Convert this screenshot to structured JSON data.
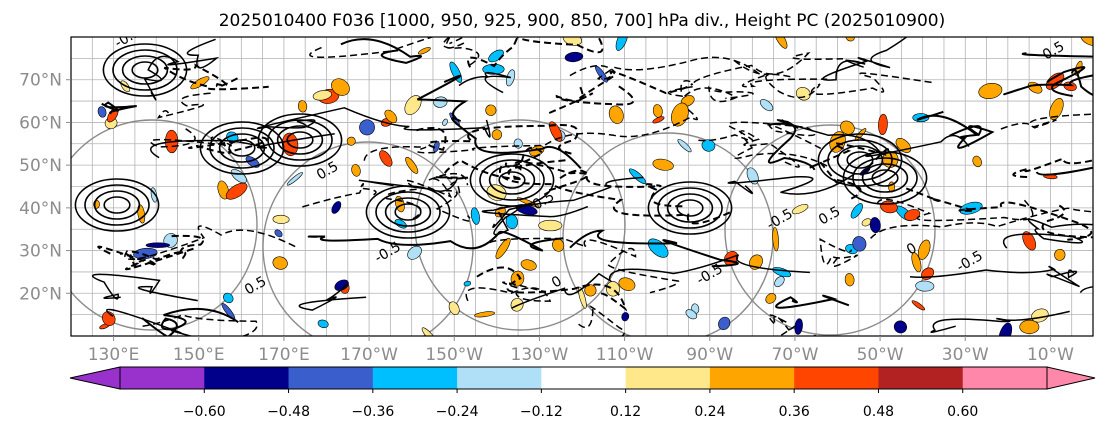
{
  "chart_data": {
    "type": "contour_map",
    "title": "2025010400 F036 [1000, 950, 925, 900, 850, 700] hPa div., Height PC (2025010900)",
    "lon_ticks": [
      "130°E",
      "150°E",
      "170°E",
      "170°W",
      "150°W",
      "130°W",
      "110°W",
      "90°W",
      "70°W",
      "50°W",
      "30°W",
      "10°W"
    ],
    "lat_ticks": [
      "70°N",
      "60°N",
      "50°N",
      "40°N",
      "30°N",
      "20°N"
    ],
    "lon_range_deg_east": [
      120,
      360
    ],
    "lat_range": [
      10,
      80
    ],
    "colorbar": {
      "ticks": [
        "−0.60",
        "−0.48",
        "−0.36",
        "−0.24",
        "−0.12",
        "0.12",
        "0.24",
        "0.36",
        "0.48",
        "0.60"
      ],
      "colors": [
        "#9932cc",
        "#00008b",
        "#3a5fcd",
        "#00bfff",
        "#b0e0f8",
        "#ffffff",
        "#ffe88a",
        "#ffa500",
        "#ff4500",
        "#b22222",
        "#ff88aa"
      ],
      "extend": "both"
    },
    "contour_labels": [
      "-0.5",
      "0.5",
      "-0.5",
      "0.5",
      "0",
      "-0.5",
      "0.5",
      "0",
      "-0.5",
      "0.5",
      "-0.5",
      "0.5"
    ],
    "grid": true
  }
}
